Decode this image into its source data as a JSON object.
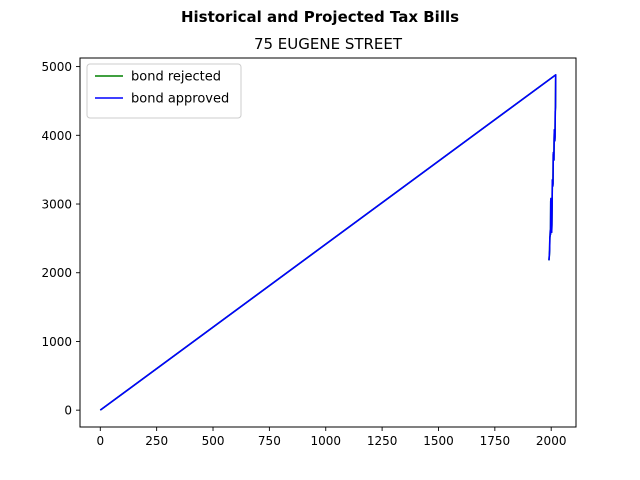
{
  "figure": {
    "suptitle": "Historical and Projected Tax Bills"
  },
  "chart_data": {
    "type": "line",
    "title": "75 EUGENE STREET",
    "xlabel": "",
    "ylabel": "",
    "xlim": [
      -90,
      2110
    ],
    "ylim": [
      -245,
      5125
    ],
    "xticks": [
      0,
      250,
      500,
      750,
      1000,
      1250,
      1500,
      1750,
      2000
    ],
    "yticks": [
      0,
      1000,
      2000,
      3000,
      4000,
      5000
    ],
    "grid": false,
    "legend": {
      "placement": "upper-left"
    },
    "series": [
      {
        "name": "bond rejected",
        "color": "#008000",
        "x": [
          0,
          2020,
          2019,
          2018,
          2017,
          2016,
          2015,
          2014,
          2013,
          2012,
          2011,
          2010,
          2009,
          2008,
          2007,
          2006,
          2005,
          2004,
          2003,
          2002,
          2001,
          2000,
          1999,
          1998,
          1997,
          1996,
          1995,
          1994,
          1993,
          1992,
          1991,
          1990
        ],
        "y": [
          0,
          4880,
          4410,
          4350,
          3980,
          3920,
          4050,
          4080,
          3940,
          3640,
          3700,
          3750,
          3720,
          3300,
          3260,
          3320,
          3350,
          2960,
          2700,
          2590,
          2620,
          2650,
          3080,
          3040,
          2560,
          2620,
          2540,
          2510,
          2330,
          2270,
          2220,
          2180
        ]
      },
      {
        "name": "bond approved",
        "color": "#0000ff",
        "x": [
          0,
          2020,
          2019,
          2018,
          2017,
          2016,
          2015,
          2014,
          2013,
          2012,
          2011,
          2010,
          2009,
          2008,
          2007,
          2006,
          2005,
          2004,
          2003,
          2002,
          2001,
          2000,
          1999,
          1998,
          1997,
          1996,
          1995,
          1994,
          1993,
          1992,
          1991,
          1990
        ],
        "y": [
          0,
          4880,
          4410,
          4350,
          3980,
          3920,
          4050,
          4080,
          3940,
          3640,
          3700,
          3750,
          3720,
          3300,
          3260,
          3320,
          3350,
          2960,
          2700,
          2590,
          2620,
          2650,
          3080,
          3040,
          2560,
          2620,
          2540,
          2510,
          2330,
          2270,
          2220,
          2180
        ]
      }
    ]
  }
}
